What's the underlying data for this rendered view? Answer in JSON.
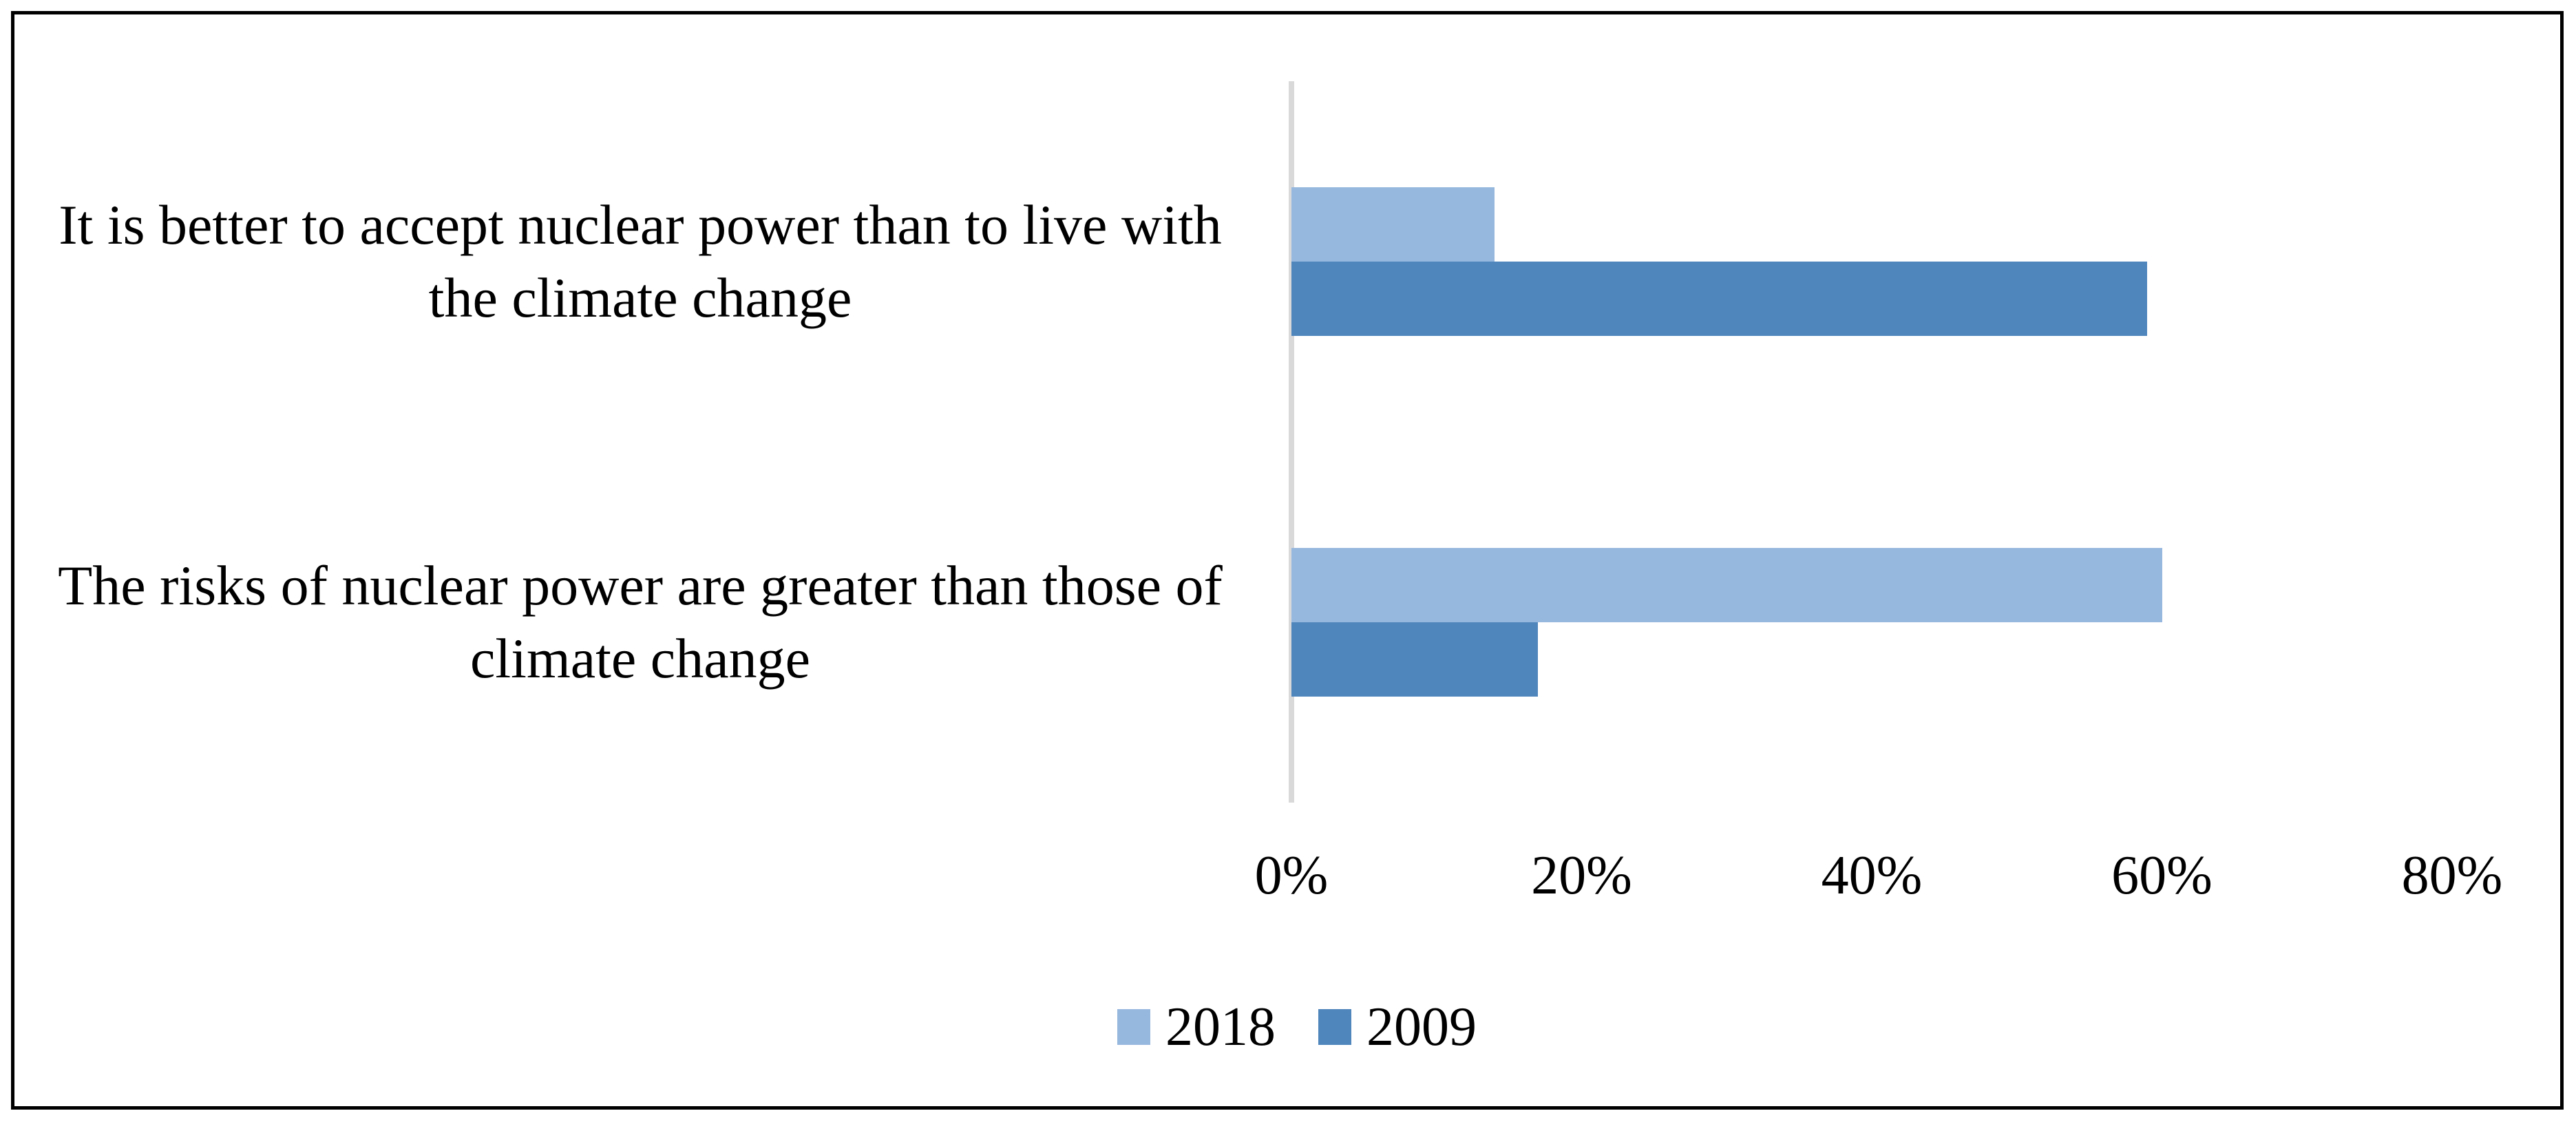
{
  "figure": {
    "background": "#ffffff",
    "border_color": "#000000"
  },
  "chart_data": {
    "type": "bar",
    "orientation": "horizontal",
    "title": "",
    "xlabel": "",
    "ylabel": "",
    "categories": [
      "It is better to accept nuclear power than to live with the climate change",
      "The risks of nuclear power are greater than those of climate change"
    ],
    "series": [
      {
        "name": "2018",
        "color": "#97B8DE",
        "values": [
          14,
          60
        ]
      },
      {
        "name": "2009",
        "color": "#4F86BC",
        "values": [
          59,
          17
        ]
      }
    ],
    "value_unit": "%",
    "xlim": [
      0,
      80
    ],
    "x_ticks": [
      "0%",
      "20%",
      "40%",
      "60%",
      "80%"
    ],
    "x_tick_values": [
      0,
      20,
      40,
      60,
      80
    ],
    "grid": false,
    "axis_line_color": "#d9d9d9",
    "legend_position": "bottom",
    "legend_entries": [
      "2018",
      "2009"
    ]
  }
}
